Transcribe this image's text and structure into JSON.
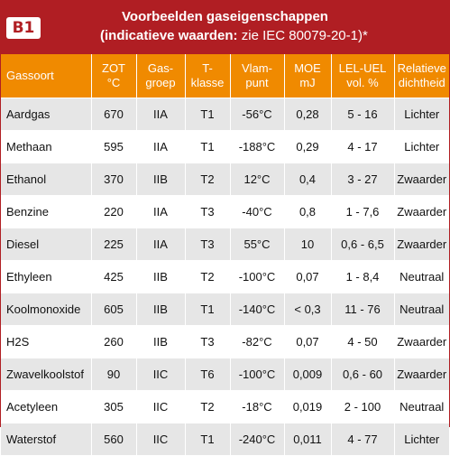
{
  "title": {
    "badge": "B1",
    "line1": "Voorbeelden gaseigenschappen",
    "line2_bold": "(indicatieve waarden:",
    "line2_rest": " zie IEC 80079-20-1)*"
  },
  "columns": [
    "Gassoort",
    "ZOT\n°C",
    "Gas-\ngroep",
    "T-\nklasse",
    "Vlam-\npunt",
    "MOE\nmJ",
    "LEL-UEL\nvol. %",
    "Relatieve\ndichtheid"
  ],
  "rows": [
    [
      "Aardgas",
      "670",
      "IIA",
      "T1",
      "-56°C",
      "0,28",
      "5 - 16",
      "Lichter"
    ],
    [
      "Methaan",
      "595",
      "IIA",
      "T1",
      "-188°C",
      "0,29",
      "4 - 17",
      "Lichter"
    ],
    [
      "Ethanol",
      "370",
      "IIB",
      "T2",
      "12°C",
      "0,4",
      "3 - 27",
      "Zwaarder"
    ],
    [
      "Benzine",
      "220",
      "IIA",
      "T3",
      "-40°C",
      "0,8",
      "1 - 7,6",
      "Zwaarder"
    ],
    [
      "Diesel",
      "225",
      "IIA",
      "T3",
      "55°C",
      "10",
      "0,6 - 6,5",
      "Zwaarder"
    ],
    [
      "Ethyleen",
      "425",
      "IIB",
      "T2",
      "-100°C",
      "0,07",
      "1 - 8,4",
      "Neutraal"
    ],
    [
      "Koolmonoxide",
      "605",
      "IIB",
      "T1",
      "-140°C",
      "< 0,3",
      "11 - 76",
      "Neutraal"
    ],
    [
      "H2S",
      "260",
      "IIB",
      "T3",
      "-82°C",
      "0,07",
      "4 - 50",
      "Zwaarder"
    ],
    [
      "Zwavelkoolstof",
      "90",
      "IIC",
      "T6",
      "-100°C",
      "0,009",
      "0,6 - 60",
      "Zwaarder"
    ],
    [
      "Acetyleen",
      "305",
      "IIC",
      "T2",
      "-18°C",
      "0,019",
      "2 - 100",
      "Neutraal"
    ],
    [
      "Waterstof",
      "560",
      "IIC",
      "T1",
      "-240°C",
      "0,011",
      "4 - 77",
      "Lichter"
    ]
  ],
  "colors": {
    "title_bg": "#b01e23",
    "header_bg": "#f08a00",
    "row_alt_bg": "#e6e6e6"
  }
}
